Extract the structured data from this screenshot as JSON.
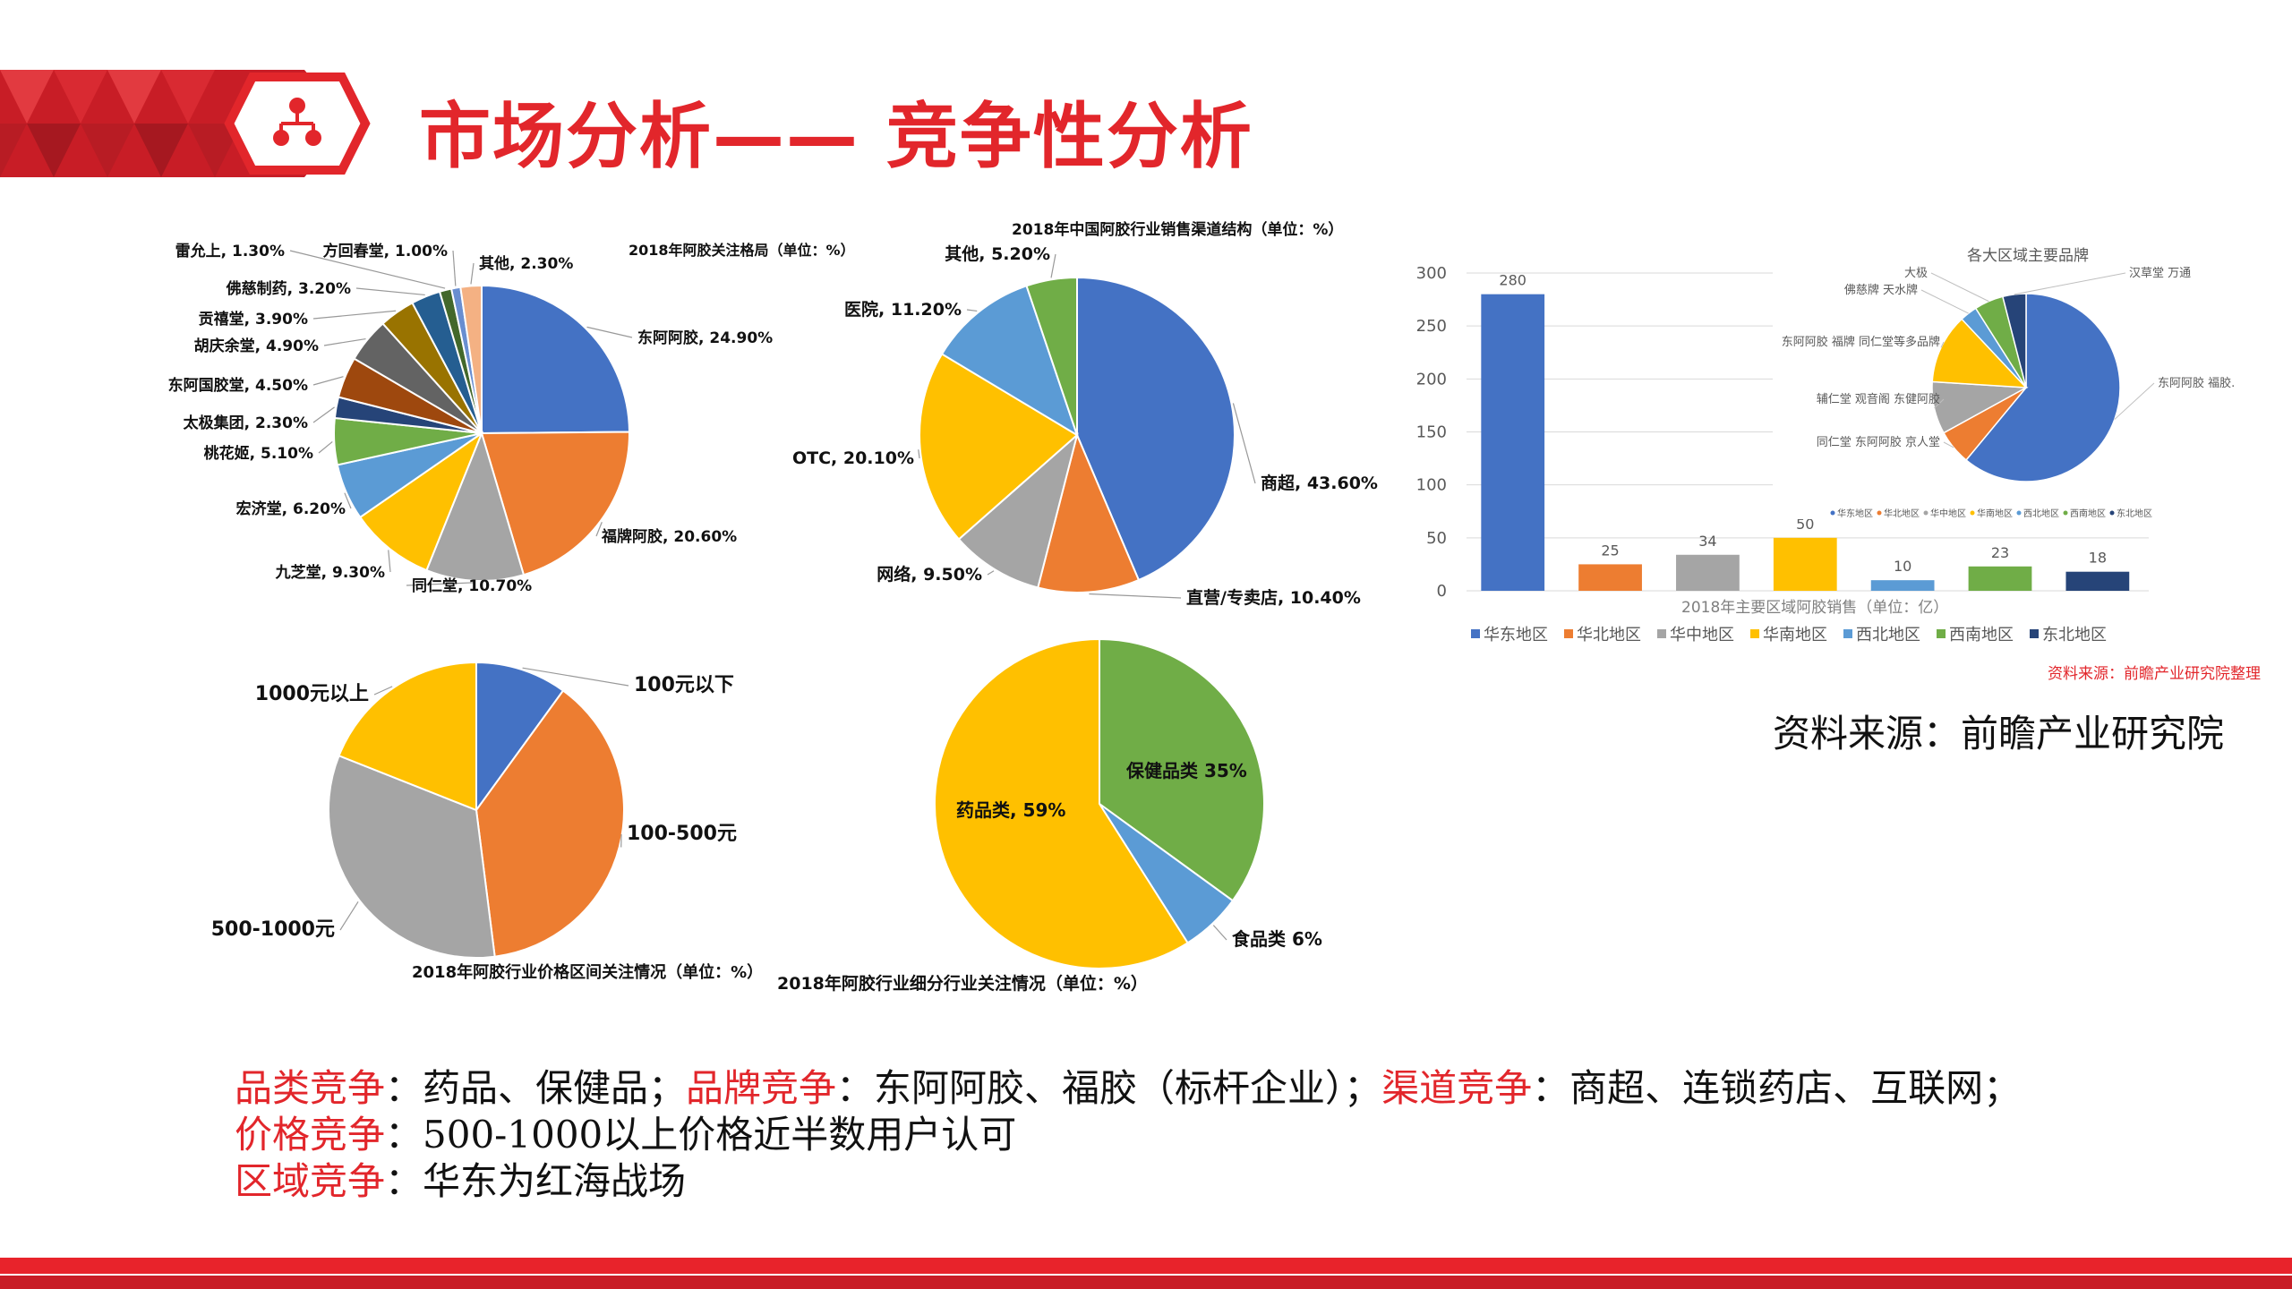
{
  "slide_title": "市场分析—— 竞争性分析",
  "source_label": "资料来源：前瞻产业研究院",
  "bottom_lines": [
    [
      {
        "text": "品类竞争",
        "red": true
      },
      {
        "text": "：药品、保健品；",
        "red": false
      },
      {
        "text": "品牌竞争",
        "red": true
      },
      {
        "text": "：东阿阿胶、福胶（标杆企业）；",
        "red": false
      },
      {
        "text": "渠道竞争",
        "red": true
      },
      {
        "text": "：商超、连锁药店、互联网；",
        "red": false
      }
    ],
    [
      {
        "text": "价格竞争",
        "red": true
      },
      {
        "text": "：500-1000以上价格近半数用户认可",
        "red": false
      }
    ],
    [
      {
        "text": "区域竞争",
        "red": true
      },
      {
        "text": "：华东为红海战场",
        "red": false
      }
    ]
  ],
  "colors": {
    "accent": "#e2262b",
    "blue": "#4472c4",
    "orange": "#ed7d31",
    "gray": "#a5a5a5",
    "yellow": "#ffc000",
    "lightblue": "#5b9bd5",
    "green": "#70ad47",
    "navy": "#264478",
    "brown": "#9e480e",
    "darkgray": "#636363",
    "olive": "#997300",
    "teal": "#255e91",
    "darkgreen": "#43682b",
    "peach": "#f4b183",
    "lightgray": "#bfbfbf"
  },
  "chart_data": [
    {
      "type": "pie",
      "title": "2018年阿胶关注格局（单位：%）",
      "slices": [
        {
          "label": "东阿阿胶, 24.90%",
          "value": 24.9,
          "color": "#4472c4"
        },
        {
          "label": "福牌阿胶, 20.60%",
          "value": 20.6,
          "color": "#ed7d31"
        },
        {
          "label": "同仁堂, 10.70%",
          "value": 10.7,
          "color": "#a5a5a5"
        },
        {
          "label": "九芝堂, 9.30%",
          "value": 9.3,
          "color": "#ffc000"
        },
        {
          "label": "宏济堂, 6.20%",
          "value": 6.2,
          "color": "#5b9bd5"
        },
        {
          "label": "桃花姬, 5.10%",
          "value": 5.1,
          "color": "#70ad47"
        },
        {
          "label": "太极集团, 2.30%",
          "value": 2.3,
          "color": "#264478"
        },
        {
          "label": "东阿国胶堂, 4.50%",
          "value": 4.5,
          "color": "#9e480e"
        },
        {
          "label": "胡庆余堂, 4.90%",
          "value": 4.9,
          "color": "#636363"
        },
        {
          "label": "贡禧堂, 3.90%",
          "value": 3.9,
          "color": "#997300"
        },
        {
          "label": "佛慈制药, 3.20%",
          "value": 3.2,
          "color": "#255e91"
        },
        {
          "label": "雷允上, 1.30%",
          "value": 1.3,
          "color": "#43682b"
        },
        {
          "label": "方回春堂, 1.00%",
          "value": 1.0,
          "color": "#698ed0"
        },
        {
          "label": "其他, 2.30%",
          "value": 2.3,
          "color": "#f4b183"
        }
      ]
    },
    {
      "type": "pie",
      "title": "2018年中国阿胶行业销售渠道结构（单位：%）",
      "slices": [
        {
          "label": "商超, 43.60%",
          "value": 43.6,
          "color": "#4472c4"
        },
        {
          "label": "直营/专卖店, 10.40%",
          "value": 10.4,
          "color": "#ed7d31"
        },
        {
          "label": "网络, 9.50%",
          "value": 9.5,
          "color": "#a5a5a5"
        },
        {
          "label": "OTC, 20.10%",
          "value": 20.1,
          "color": "#ffc000"
        },
        {
          "label": "医院, 11.20%",
          "value": 11.2,
          "color": "#5b9bd5"
        },
        {
          "label": "其他, 5.20%",
          "value": 5.2,
          "color": "#70ad47"
        }
      ]
    },
    {
      "type": "pie",
      "title": "2018年阿胶行业价格区间关注情况（单位：%）",
      "slices": [
        {
          "label": "100元以下",
          "value": 10,
          "color": "#4472c4"
        },
        {
          "label": "100-500元",
          "value": 38,
          "color": "#ed7d31"
        },
        {
          "label": "500-1000元",
          "value": 33,
          "color": "#a5a5a5"
        },
        {
          "label": "1000元以上",
          "value": 19,
          "color": "#ffc000"
        }
      ]
    },
    {
      "type": "pie",
      "title": "2018年阿胶行业细分行业关注情况（单位：%）",
      "slices": [
        {
          "label": "保健品类 35%",
          "value": 35,
          "color": "#70ad47"
        },
        {
          "label": "食品类  6%",
          "value": 6,
          "color": "#5b9bd5"
        },
        {
          "label": "药品类, 59%",
          "value": 59,
          "color": "#ffc000"
        }
      ]
    },
    {
      "type": "bar",
      "xlabel": "2018年主要区域阿胶销售（单位：亿）",
      "categories": [
        "华东地区",
        "华北地区",
        "华中地区",
        "华南地区",
        "西北地区",
        "西南地区",
        "东北地区"
      ],
      "values": [
        280,
        25,
        34,
        50,
        10,
        23,
        18
      ],
      "colors": [
        "#4472c4",
        "#ed7d31",
        "#a5a5a5",
        "#ffc000",
        "#5b9bd5",
        "#70ad47",
        "#264478"
      ],
      "ylim": [
        0,
        300
      ],
      "yticks": [
        0,
        50,
        100,
        150,
        200,
        250,
        300
      ],
      "legend_placement": "bottom",
      "source_note": "资料来源：前瞻产业研究院整理"
    },
    {
      "type": "pie",
      "title": "各大区域主要品牌",
      "slices": [
        {
          "label": "东阿阿胶 福胶.",
          "value": 61,
          "color": "#4472c4"
        },
        {
          "label": "同仁堂 东阿阿胶 京人堂",
          "value": 6,
          "color": "#ed7d31"
        },
        {
          "label": "辅仁堂 观音阁 东健阿胶",
          "value": 9,
          "color": "#a5a5a5"
        },
        {
          "label": "东阿阿胶 福牌 同仁堂等多品牌",
          "value": 12,
          "color": "#ffc000"
        },
        {
          "label": "佛慈牌 天水牌",
          "value": 3,
          "color": "#5b9bd5"
        },
        {
          "label": "大极",
          "value": 5,
          "color": "#70ad47"
        },
        {
          "label": "汉草堂 万通",
          "value": 4,
          "color": "#264478"
        }
      ],
      "legend": [
        "华东地区",
        "华北地区",
        "华中地区",
        "华南地区",
        "西北地区",
        "西南地区",
        "东北地区"
      ]
    }
  ]
}
